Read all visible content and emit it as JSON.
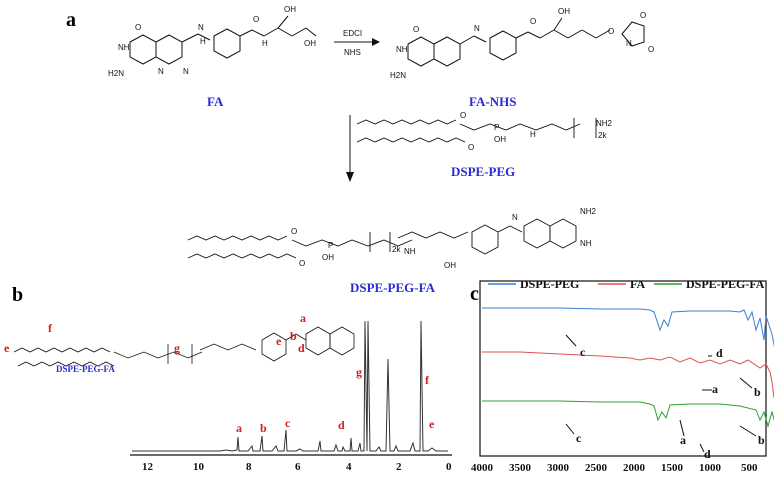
{
  "panels": {
    "a": "a",
    "b": "b",
    "c": "c"
  },
  "scheme": {
    "reagent_top": "EDCI",
    "reagent_bottom": "NHS",
    "compounds": {
      "fa": "FA",
      "fa_nhs": "FA-NHS",
      "dspe_peg": "DSPE-PEG",
      "dspe_peg_fa": "DSPE-PEG-FA"
    },
    "atoms": {
      "oh": "OH",
      "o": "O",
      "nh": "NH",
      "nh2": "NH2",
      "h2n": "H2N",
      "n": "N",
      "p": "P",
      "sub_2k": "2k",
      "h": "H"
    }
  },
  "nmr": {
    "structure_label": "DSPE-PEG-FA",
    "peak_labels": [
      "a",
      "b",
      "c",
      "d",
      "g",
      "f",
      "e"
    ],
    "structure_labels": [
      "e",
      "f",
      "g",
      "e",
      "b",
      "a",
      "d"
    ],
    "x_ticks": [
      "12",
      "10",
      "8",
      "6",
      "4",
      "2",
      "0"
    ],
    "colors": {
      "trace": "#333333",
      "labels": "#d42020"
    }
  },
  "ftir": {
    "legend": [
      "DSPE-PEG",
      "FA",
      "DSPE-PEG-FA"
    ],
    "colors": [
      "#3a7fd5",
      "#e05050",
      "#2ca02c"
    ],
    "x_ticks": [
      "4000",
      "3500",
      "3000",
      "2500",
      "2000",
      "1500",
      "1000",
      "500"
    ],
    "annotations": [
      "c",
      "d",
      "a",
      "b",
      "c",
      "a",
      "b",
      "d"
    ]
  }
}
